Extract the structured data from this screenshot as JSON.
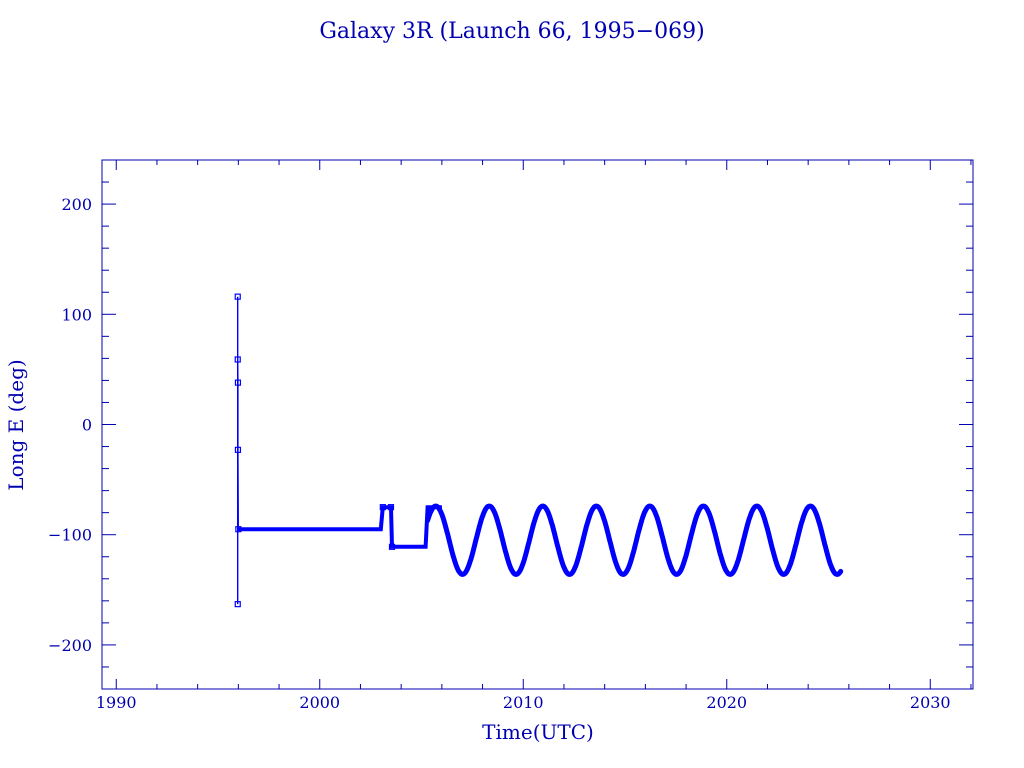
{
  "chart_data": {
    "type": "line",
    "title": "Galaxy 3R (Launch 66, 1995−069)",
    "xlabel": "Time(UTC)",
    "ylabel": "Long E (deg)",
    "xlim": [
      1989.3,
      2032.1
    ],
    "ylim": [
      -240,
      240
    ],
    "x_ticks": [
      1990,
      2000,
      2010,
      2020,
      2030
    ],
    "x_tick_labels": [
      "1990",
      "2000",
      "2010",
      "2020",
      "2030"
    ],
    "y_ticks": [
      -200,
      -100,
      0,
      100,
      200
    ],
    "y_tick_labels": [
      "−200",
      "−100",
      "0",
      "100",
      "200"
    ],
    "grid": false,
    "colors": {
      "text": "#0000b0",
      "axes": "#0000b0",
      "data": "#0000ff"
    },
    "series": [
      {
        "segments": [
          {
            "kind": "line",
            "x": [
              1995.97,
              1995.97,
              1995.97,
              1995.98,
              1995.98,
              1996.0,
              1996.1,
              2003.0,
              2003.1,
              2003.5,
              2003.55,
              2005.2,
              2005.3,
              2006.0
            ],
            "y": [
              116,
              -163,
              59,
              38,
              -23,
              -95,
              -95,
              -95,
              -75,
              -75,
              -111,
              -111,
              -75,
              -75
            ]
          },
          {
            "kind": "sinusoid",
            "x_start": 2005.3,
            "x_end": 2025.6,
            "center": -105,
            "amplitude": 31,
            "period_years": 2.63,
            "peak_at": 2005.7
          }
        ]
      }
    ]
  }
}
